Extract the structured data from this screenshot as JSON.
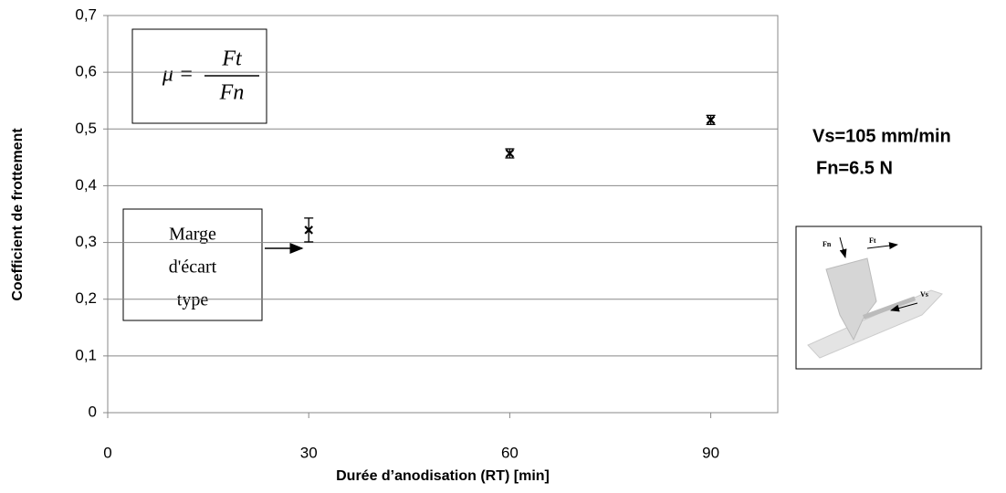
{
  "chart_data": {
    "type": "scatter",
    "x_label": "Durée d’anodisation  (RT) [min]",
    "y_label": "Coefficient de frottement",
    "x": [
      30,
      60,
      90
    ],
    "values": [
      0.322,
      0.457,
      0.516
    ],
    "errors": [
      0.021,
      0.008,
      0.008
    ],
    "color": "#000000",
    "xlim": [
      0,
      100
    ],
    "xticks": [
      0,
      30,
      60,
      90
    ],
    "ylim": [
      0,
      0.7
    ],
    "yticks": [
      0,
      {
        "value": 0.1,
        "label": "0,1"
      },
      {
        "value": 0.2,
        "label": "0,2"
      },
      {
        "value": 0.3,
        "label": "0,3"
      },
      {
        "value": 0.4,
        "label": "0,4"
      },
      {
        "value": 0.5,
        "label": "0,5"
      },
      {
        "value": 0.6,
        "label": "0,6"
      },
      {
        "value": 0.7,
        "label": "0,7"
      }
    ],
    "grid": true,
    "annotations": {
      "formula": {
        "lhs": "μ =",
        "numerator": "Ft",
        "denominator": "Fn"
      },
      "error_note": [
        "Marge",
        "d'écart",
        "type"
      ],
      "conditions": [
        "Vs=105 mm/min",
        "Fn=6.5 N"
      ],
      "diagram_labels": [
        "Fn",
        "Ft",
        "Vs"
      ]
    }
  }
}
